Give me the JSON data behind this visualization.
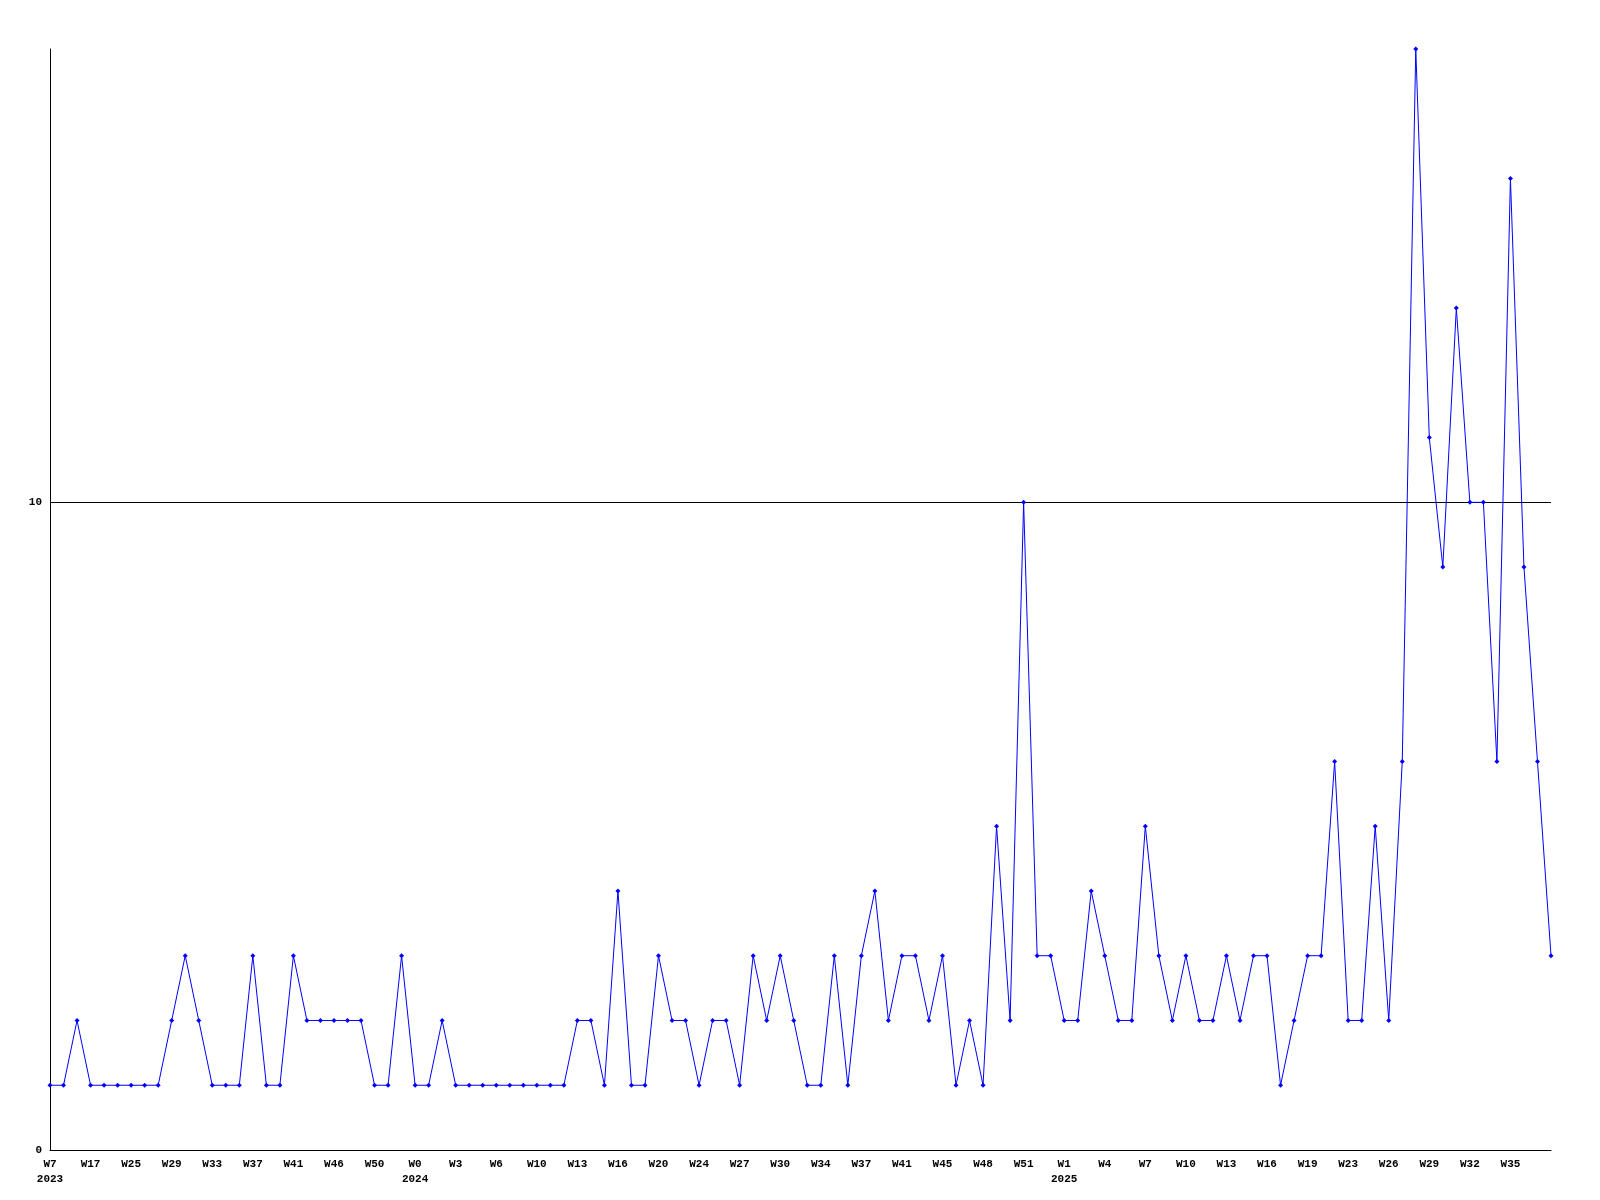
{
  "chart_data": {
    "type": "line",
    "categories": [
      "W7\n2023",
      null,
      null,
      "W17",
      null,
      null,
      "W25",
      null,
      null,
      "W29",
      null,
      null,
      "W33",
      null,
      null,
      "W37",
      null,
      null,
      "W41",
      null,
      null,
      "W46",
      null,
      null,
      "W50",
      null,
      null,
      "W0\n2024",
      null,
      null,
      "W3",
      null,
      null,
      "W6",
      null,
      null,
      "W10",
      null,
      null,
      "W13",
      null,
      null,
      "W16",
      null,
      null,
      "W20",
      null,
      null,
      "W24",
      null,
      null,
      "W27",
      null,
      null,
      "W30",
      null,
      null,
      "W34",
      null,
      null,
      "W37",
      null,
      null,
      "W41",
      null,
      null,
      "W45",
      null,
      null,
      "W48",
      null,
      null,
      "W51",
      null,
      null,
      "W1\n2025",
      null,
      null,
      "W4",
      null,
      null,
      "W7",
      null,
      null,
      "W10",
      null,
      null,
      "W13",
      null,
      null,
      "W16",
      null,
      null,
      "W19",
      null,
      null,
      "W23",
      null,
      null,
      "W26",
      null,
      null,
      "W29",
      null,
      null,
      "W32",
      null,
      null,
      "W35",
      null,
      null,
      null
    ],
    "series": [
      {
        "color": "#0000ff",
        "values": [
          1,
          1,
          2,
          1,
          1,
          1,
          1,
          1,
          1,
          2,
          3,
          2,
          1,
          1,
          1,
          3,
          1,
          1,
          3,
          2,
          2,
          2,
          2,
          2,
          1,
          1,
          3,
          1,
          1,
          2,
          1,
          1,
          1,
          1,
          1,
          1,
          1,
          1,
          1,
          2,
          2,
          1,
          4,
          1,
          1,
          3,
          2,
          2,
          1,
          2,
          2,
          1,
          3,
          2,
          3,
          2,
          1,
          1,
          3,
          1,
          3,
          4,
          2,
          3,
          3,
          2,
          3,
          1,
          2,
          1,
          5,
          2,
          10,
          3,
          3,
          2,
          2,
          4,
          3,
          2,
          2,
          5,
          3,
          2,
          3,
          2,
          2,
          3,
          2,
          3,
          3,
          1,
          2,
          3,
          3,
          6,
          2,
          2,
          5,
          2,
          6,
          17,
          11,
          9,
          13,
          10,
          10,
          6,
          15,
          9,
          6,
          3
        ]
      }
    ],
    "ylim": [
      0,
      17
    ],
    "yticks": [
      0,
      10
    ],
    "grid": "y",
    "marker": "diamond",
    "line_style": "solid"
  }
}
